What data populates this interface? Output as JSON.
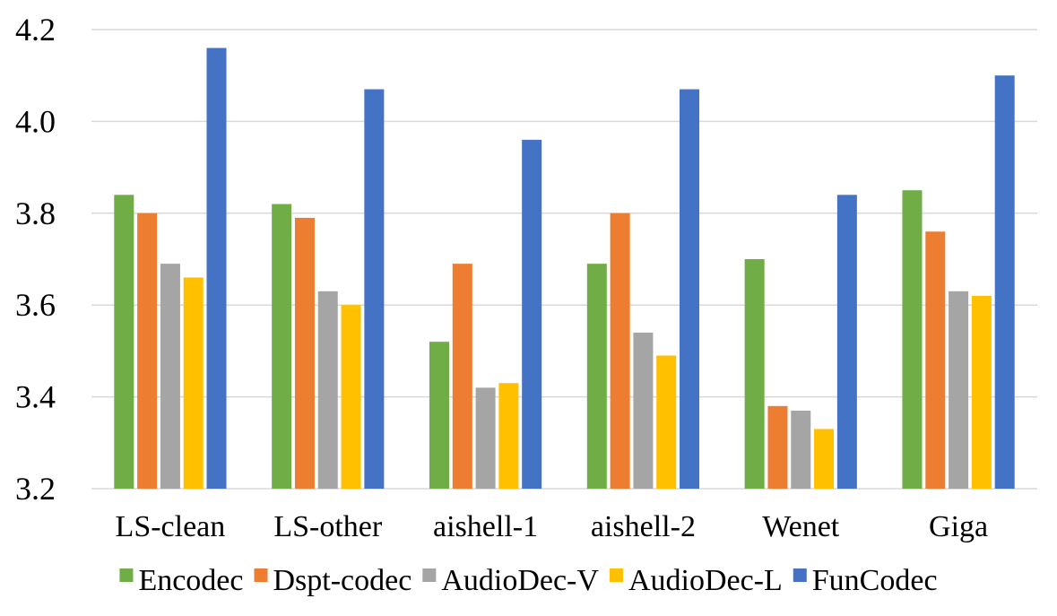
{
  "chart_data": {
    "type": "bar",
    "title": "",
    "xlabel": "",
    "ylabel": "",
    "categories": [
      "LS-clean",
      "LS-other",
      "aishell-1",
      "aishell-2",
      "Wenet",
      "Giga"
    ],
    "ylim": [
      3.2,
      4.2
    ],
    "yticks": [
      "3.2",
      "3.4",
      "3.6",
      "3.8",
      "4.0",
      "4.2"
    ],
    "grid": true,
    "legend_position": "bottom",
    "series": [
      {
        "name": "Encodec",
        "color": "#70ad47",
        "values": [
          3.84,
          3.82,
          3.52,
          3.69,
          3.7,
          3.85
        ]
      },
      {
        "name": "Dspt-codec",
        "color": "#ed7d31",
        "values": [
          3.8,
          3.79,
          3.69,
          3.8,
          3.38,
          3.76
        ]
      },
      {
        "name": "AudioDec-V",
        "color": "#a5a5a5",
        "values": [
          3.69,
          3.63,
          3.42,
          3.54,
          3.37,
          3.63
        ]
      },
      {
        "name": "AudioDec-L",
        "color": "#ffc000",
        "values": [
          3.66,
          3.6,
          3.43,
          3.49,
          3.33,
          3.62
        ]
      },
      {
        "name": "FunCodec",
        "color": "#4472c4",
        "values": [
          4.16,
          4.07,
          3.96,
          4.07,
          3.84,
          4.1
        ]
      }
    ]
  }
}
